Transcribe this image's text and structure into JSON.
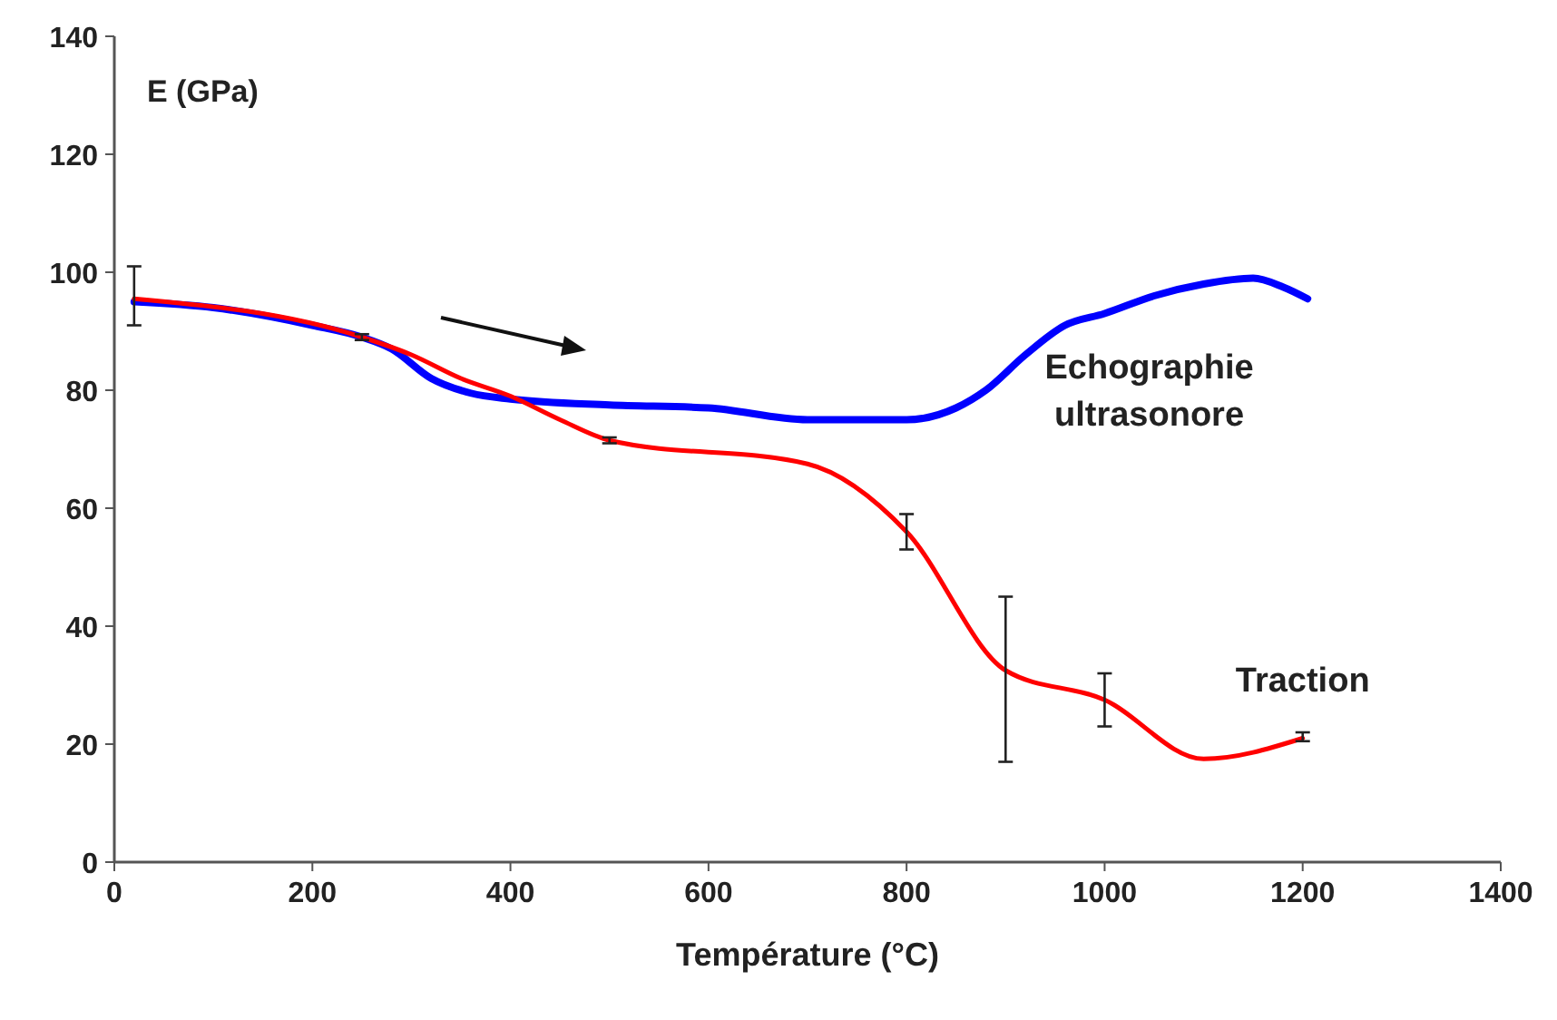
{
  "chart_data": {
    "type": "line",
    "xlabel": "Température (°C)",
    "ylabel": "E (GPa)",
    "xlim": [
      0,
      1400
    ],
    "ylim": [
      0,
      140
    ],
    "xticks": [
      0,
      200,
      400,
      600,
      800,
      1000,
      1200,
      1400
    ],
    "yticks": [
      0,
      20,
      40,
      60,
      80,
      100,
      120,
      140
    ],
    "grid": false,
    "legend": false,
    "marker": "none",
    "line_style": "solid",
    "series": [
      {
        "name": "Echographie ultrasonore",
        "color": "#0000ff",
        "x": [
          20,
          100,
          200,
          250,
          280,
          320,
          360,
          400,
          500,
          600,
          700,
          800,
          850,
          880,
          920,
          960,
          1000,
          1050,
          1100,
          1150,
          1180,
          1205
        ],
        "values": [
          95,
          94,
          91,
          89,
          87,
          82,
          79.5,
          78.5,
          77.5,
          77,
          75,
          75,
          77,
          80,
          86,
          91,
          93,
          96,
          98,
          99,
          97.5,
          95.5
        ]
      },
      {
        "name": "Traction",
        "color": "#ff0000",
        "x": [
          20,
          250,
          300,
          350,
          400,
          450,
          500,
          700,
          800,
          900,
          1000,
          1100,
          1200
        ],
        "values": [
          95.5,
          89,
          86,
          82,
          79,
          75,
          71.5,
          67.5,
          56,
          32.5,
          27.5,
          17.5,
          21
        ],
        "errors": [
          [
            91,
            101
          ],
          [
            88.5,
            89.5
          ],
          null,
          null,
          null,
          null,
          [
            71,
            72
          ],
          null,
          [
            53,
            59
          ],
          [
            17,
            45
          ],
          [
            23,
            32
          ],
          null,
          [
            20.5,
            22
          ]
        ]
      }
    ]
  }
}
